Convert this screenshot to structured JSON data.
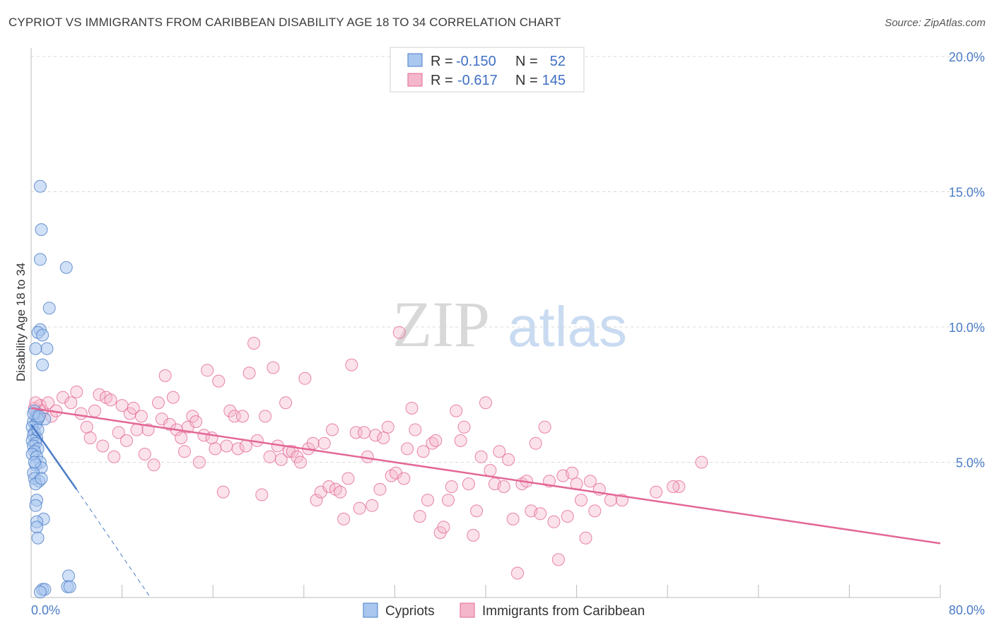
{
  "title": "CYPRIOT VS IMMIGRANTS FROM CARIBBEAN DISABILITY AGE 18 TO 34 CORRELATION CHART",
  "source": "Source: ZipAtlas.com",
  "watermark": {
    "zip": "ZIP",
    "atlas": "atlas"
  },
  "colors": {
    "blue": "#4a7cc7",
    "blue_fill": "#a9c7ef",
    "pink": "#e36796",
    "pink_fill": "#f4b6cb",
    "grid": "#d8d8d8"
  },
  "legend": {
    "rows": [
      {
        "r_label": "R =",
        "r_value": "-0.150",
        "n_label": "N =",
        "n_value": "52"
      },
      {
        "r_label": "R =",
        "r_value": "-0.617",
        "n_label": "N =",
        "n_value": "145"
      }
    ]
  },
  "chart_data": {
    "type": "scatter",
    "title": "CYPRIOT VS IMMIGRANTS FROM CARIBBEAN DISABILITY AGE 18 TO 34 CORRELATION CHART",
    "xlabel": "",
    "ylabel": "Disability Age 18 to 34",
    "xlim": [
      0,
      80
    ],
    "ylim": [
      0,
      20
    ],
    "x_tick_labels": [
      "0.0%",
      "80.0%"
    ],
    "y_ticks": [
      5,
      10,
      15,
      20
    ],
    "y_tick_labels": [
      "5.0%",
      "10.0%",
      "15.0%",
      "20.0%"
    ],
    "grid": true,
    "legend_position": "top-center",
    "series": [
      {
        "name": "Cypriots",
        "color": "#4a7cc7",
        "trend": {
          "x0": 0.0,
          "y0": 6.4,
          "x1": 4.0,
          "y1": 4.0,
          "dash_x1": 10.5,
          "dash_y1": 0.0
        },
        "points": [
          [
            0.8,
            15.2
          ],
          [
            0.9,
            13.6
          ],
          [
            0.8,
            12.5
          ],
          [
            3.1,
            12.2
          ],
          [
            1.6,
            10.7
          ],
          [
            0.8,
            9.9
          ],
          [
            0.6,
            9.8
          ],
          [
            1.0,
            9.7
          ],
          [
            1.4,
            9.2
          ],
          [
            0.4,
            9.2
          ],
          [
            1.0,
            8.6
          ],
          [
            0.3,
            6.9
          ],
          [
            0.5,
            6.7
          ],
          [
            1.2,
            6.6
          ],
          [
            0.2,
            6.5
          ],
          [
            0.4,
            6.4
          ],
          [
            0.6,
            6.6
          ],
          [
            0.1,
            6.3
          ],
          [
            0.3,
            6.1
          ],
          [
            0.2,
            6.0
          ],
          [
            0.5,
            5.9
          ],
          [
            0.1,
            5.8
          ],
          [
            0.4,
            5.7
          ],
          [
            0.2,
            5.6
          ],
          [
            0.6,
            5.5
          ],
          [
            0.3,
            5.4
          ],
          [
            0.1,
            5.3
          ],
          [
            0.5,
            5.2
          ],
          [
            0.8,
            5.0
          ],
          [
            0.4,
            4.9
          ],
          [
            0.9,
            4.8
          ],
          [
            0.2,
            4.6
          ],
          [
            0.3,
            4.4
          ],
          [
            0.7,
            4.3
          ],
          [
            0.4,
            4.2
          ],
          [
            0.9,
            4.4
          ],
          [
            0.5,
            3.6
          ],
          [
            0.4,
            3.4
          ],
          [
            1.1,
            2.9
          ],
          [
            0.5,
            2.8
          ],
          [
            0.5,
            2.6
          ],
          [
            0.6,
            2.2
          ],
          [
            3.3,
            0.8
          ],
          [
            3.2,
            0.4
          ],
          [
            3.4,
            0.4
          ],
          [
            1.0,
            0.3
          ],
          [
            1.2,
            0.3
          ],
          [
            0.8,
            0.2
          ],
          [
            0.2,
            6.8
          ],
          [
            0.6,
            6.2
          ],
          [
            0.3,
            5.0
          ],
          [
            0.7,
            6.7
          ]
        ]
      },
      {
        "name": "Immigrants from Caribbean",
        "color": "#e36796",
        "trend": {
          "x0": 0.0,
          "y0": 7.0,
          "x1": 80.0,
          "y1": 2.0
        },
        "points": [
          [
            0.3,
            7.0
          ],
          [
            0.5,
            6.8
          ],
          [
            0.8,
            7.1
          ],
          [
            1.0,
            6.9
          ],
          [
            1.5,
            7.2
          ],
          [
            1.8,
            6.7
          ],
          [
            2.2,
            6.9
          ],
          [
            2.8,
            7.4
          ],
          [
            3.5,
            7.2
          ],
          [
            4.0,
            7.6
          ],
          [
            4.4,
            6.8
          ],
          [
            4.9,
            6.3
          ],
          [
            5.2,
            5.9
          ],
          [
            5.6,
            6.9
          ],
          [
            6.0,
            7.5
          ],
          [
            6.3,
            5.6
          ],
          [
            6.6,
            7.4
          ],
          [
            7.0,
            7.3
          ],
          [
            7.3,
            5.2
          ],
          [
            7.7,
            6.1
          ],
          [
            8.0,
            7.1
          ],
          [
            8.4,
            5.8
          ],
          [
            8.7,
            6.8
          ],
          [
            9.0,
            7.0
          ],
          [
            9.3,
            6.2
          ],
          [
            9.7,
            6.7
          ],
          [
            10.0,
            5.3
          ],
          [
            10.3,
            6.2
          ],
          [
            10.8,
            4.9
          ],
          [
            11.2,
            7.2
          ],
          [
            11.5,
            6.6
          ],
          [
            11.8,
            8.2
          ],
          [
            12.2,
            6.4
          ],
          [
            12.5,
            7.4
          ],
          [
            12.8,
            6.2
          ],
          [
            13.2,
            5.9
          ],
          [
            13.5,
            5.4
          ],
          [
            13.8,
            6.3
          ],
          [
            14.2,
            6.7
          ],
          [
            14.5,
            6.5
          ],
          [
            14.8,
            5.0
          ],
          [
            15.2,
            6.0
          ],
          [
            15.5,
            8.4
          ],
          [
            15.9,
            5.9
          ],
          [
            16.2,
            5.5
          ],
          [
            16.5,
            8.0
          ],
          [
            16.9,
            3.9
          ],
          [
            17.2,
            5.6
          ],
          [
            17.5,
            6.9
          ],
          [
            17.9,
            6.7
          ],
          [
            18.2,
            5.5
          ],
          [
            18.6,
            6.7
          ],
          [
            18.9,
            5.6
          ],
          [
            19.2,
            8.3
          ],
          [
            19.6,
            9.4
          ],
          [
            19.9,
            5.8
          ],
          [
            20.3,
            3.8
          ],
          [
            20.6,
            6.7
          ],
          [
            21.0,
            5.2
          ],
          [
            21.3,
            8.5
          ],
          [
            21.7,
            5.6
          ],
          [
            22.0,
            5.1
          ],
          [
            22.4,
            7.2
          ],
          [
            22.7,
            5.4
          ],
          [
            23.0,
            5.4
          ],
          [
            23.4,
            5.2
          ],
          [
            23.7,
            5.0
          ],
          [
            24.1,
            8.1
          ],
          [
            24.4,
            5.5
          ],
          [
            24.8,
            5.7
          ],
          [
            25.1,
            3.6
          ],
          [
            25.5,
            3.9
          ],
          [
            25.8,
            5.7
          ],
          [
            26.2,
            4.1
          ],
          [
            26.5,
            6.2
          ],
          [
            26.8,
            4.0
          ],
          [
            27.2,
            3.9
          ],
          [
            27.5,
            2.9
          ],
          [
            27.9,
            4.4
          ],
          [
            28.2,
            8.6
          ],
          [
            28.6,
            6.1
          ],
          [
            28.9,
            3.3
          ],
          [
            29.3,
            6.1
          ],
          [
            29.6,
            5.2
          ],
          [
            30.0,
            3.4
          ],
          [
            30.3,
            6.0
          ],
          [
            30.7,
            4.0
          ],
          [
            31.0,
            5.9
          ],
          [
            31.4,
            6.3
          ],
          [
            31.7,
            4.5
          ],
          [
            32.1,
            4.6
          ],
          [
            32.4,
            9.8
          ],
          [
            32.8,
            4.4
          ],
          [
            33.1,
            5.5
          ],
          [
            33.5,
            7.0
          ],
          [
            33.8,
            6.2
          ],
          [
            34.2,
            3.0
          ],
          [
            34.5,
            5.4
          ],
          [
            34.9,
            3.6
          ],
          [
            35.3,
            5.7
          ],
          [
            35.6,
            5.8
          ],
          [
            36.0,
            2.4
          ],
          [
            36.3,
            2.6
          ],
          [
            36.7,
            3.6
          ],
          [
            37.0,
            4.1
          ],
          [
            37.4,
            6.9
          ],
          [
            37.8,
            5.8
          ],
          [
            38.1,
            6.3
          ],
          [
            38.5,
            4.2
          ],
          [
            38.9,
            2.3
          ],
          [
            39.2,
            3.2
          ],
          [
            39.6,
            5.2
          ],
          [
            40.0,
            7.2
          ],
          [
            40.4,
            4.7
          ],
          [
            40.8,
            4.2
          ],
          [
            41.2,
            5.4
          ],
          [
            41.6,
            4.1
          ],
          [
            42.0,
            5.1
          ],
          [
            42.4,
            2.9
          ],
          [
            42.8,
            0.9
          ],
          [
            43.2,
            4.2
          ],
          [
            43.6,
            4.3
          ],
          [
            44.0,
            3.2
          ],
          [
            44.4,
            5.7
          ],
          [
            44.8,
            3.1
          ],
          [
            45.2,
            6.3
          ],
          [
            45.6,
            4.3
          ],
          [
            46.0,
            2.8
          ],
          [
            46.4,
            1.4
          ],
          [
            46.8,
            4.5
          ],
          [
            47.2,
            3.0
          ],
          [
            47.6,
            4.6
          ],
          [
            48.0,
            4.2
          ],
          [
            48.4,
            3.6
          ],
          [
            48.8,
            2.2
          ],
          [
            49.2,
            4.3
          ],
          [
            49.6,
            3.2
          ],
          [
            50.0,
            4.0
          ],
          [
            51.0,
            3.6
          ],
          [
            52.0,
            3.6
          ],
          [
            55.0,
            3.9
          ],
          [
            57.0,
            4.1
          ],
          [
            59.0,
            5.0
          ],
          [
            56.5,
            4.1
          ],
          [
            0.4,
            7.2
          ]
        ]
      }
    ]
  },
  "bottom_legend": [
    {
      "label": "Cypriots",
      "color": "#a9c7ef",
      "stroke": "#4a7cc7"
    },
    {
      "label": "Immigrants from Caribbean",
      "color": "#f4b6cb",
      "stroke": "#e36796"
    }
  ]
}
